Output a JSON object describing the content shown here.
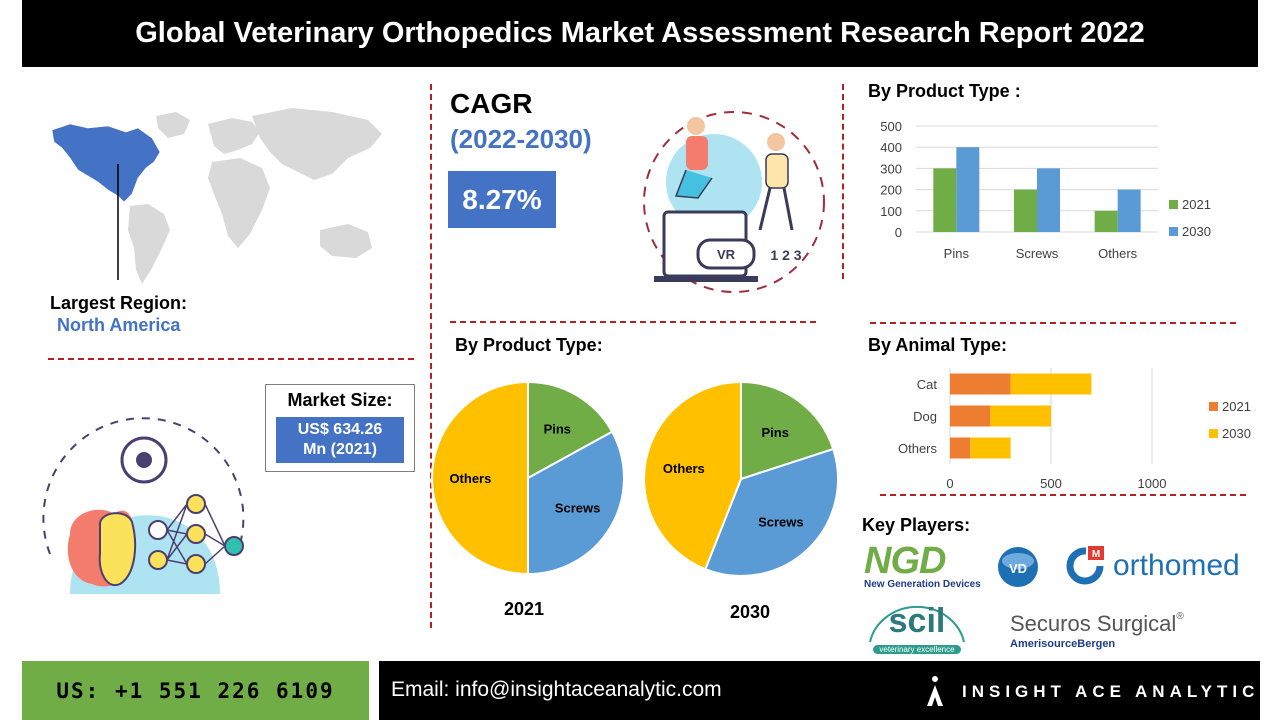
{
  "header": {
    "title": "Global Veterinary Orthopedics Market Assessment Research Report 2022"
  },
  "region": {
    "label": "Largest Region:",
    "value": "North America"
  },
  "cagr": {
    "title": "CAGR",
    "period": "(2022-2030)",
    "value": "8.27%"
  },
  "market_size": {
    "label": "Market Size:",
    "value_line1": "US$ 634.26",
    "value_line2": "Mn (2021)"
  },
  "illustration": {
    "vr_text": "VR",
    "steps_text": "1 2 3"
  },
  "sections": {
    "product_type_bar": "By Product Type :",
    "product_type_pie": "By Product Type:",
    "animal_type": "By Animal Type:",
    "key_players": "Key Players:"
  },
  "colors": {
    "blue": "#4472c4",
    "green": "#70ad47",
    "orange": "#ed7d31",
    "yellow": "#ffc000",
    "sky": "#5b9bd5",
    "red_dash": "#b22222"
  },
  "chart_data": [
    {
      "type": "bar",
      "title": "",
      "categories": [
        "Pins",
        "Screws",
        "Others"
      ],
      "series": [
        {
          "name": "2021",
          "values": [
            300,
            200,
            100
          ],
          "color": "#70ad47"
        },
        {
          "name": "2030",
          "values": [
            400,
            300,
            200
          ],
          "color": "#5b9bd5"
        }
      ],
      "ylim": [
        0,
        500
      ],
      "yticks": [
        0,
        100,
        200,
        300,
        400,
        500
      ],
      "grid": true,
      "legend": "right"
    },
    {
      "type": "bar",
      "orientation": "horizontal",
      "stacked": true,
      "categories": [
        "Cat",
        "Dog",
        "Others"
      ],
      "series": [
        {
          "name": "2021",
          "values": [
            300,
            200,
            100
          ],
          "color": "#ed7d31"
        },
        {
          "name": "2030",
          "values": [
            400,
            300,
            200
          ],
          "color": "#ffc000"
        }
      ],
      "xlim": [
        0,
        1000
      ],
      "xticks": [
        0,
        500,
        1000
      ],
      "grid": true,
      "legend": "right"
    },
    {
      "type": "pie",
      "label": "2021",
      "slices": [
        {
          "name": "Pins",
          "value": 17,
          "color": "#70ad47"
        },
        {
          "name": "Screws",
          "value": 33,
          "color": "#5b9bd5"
        },
        {
          "name": "Others",
          "value": 50,
          "color": "#ffc000"
        }
      ]
    },
    {
      "type": "pie",
      "label": "2030",
      "slices": [
        {
          "name": "Pins",
          "value": 20,
          "color": "#70ad47"
        },
        {
          "name": "Screws",
          "value": 36,
          "color": "#5b9bd5"
        },
        {
          "name": "Others",
          "value": 44,
          "color": "#ffc000"
        }
      ]
    }
  ],
  "key_players": {
    "ngd": "NGD",
    "ngd_sub": "New Generation Devices",
    "vd": "VD",
    "orthomed": "orthomed",
    "orthomed_mark": "M",
    "scil": "scil",
    "scil_sub": "veterinary excellence",
    "securos": "Securos Surgical",
    "securos_mark": "®",
    "amerisource": "AmerisourceBergen"
  },
  "footer": {
    "phone": "US: +1 551 226 6109",
    "email": "Email: info@insightaceanalytic.com",
    "brand": "INSIGHT ACE ANALYTIC"
  }
}
